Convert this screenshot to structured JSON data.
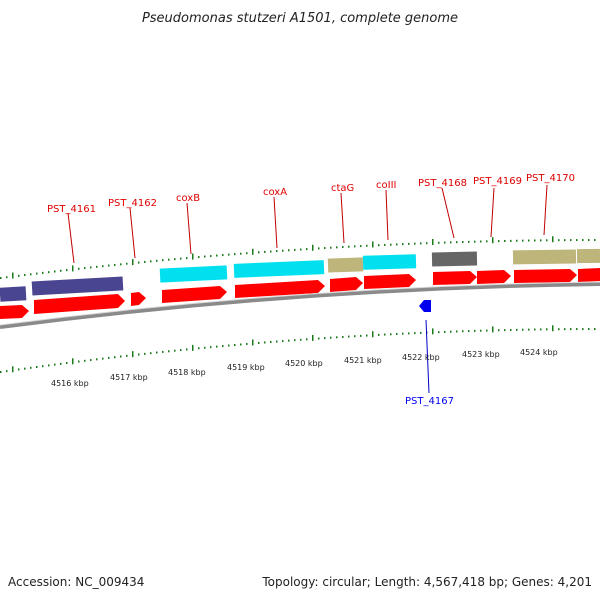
{
  "title": "Pseudomonas stutzeri A1501, complete genome",
  "footer": {
    "accession": "Accession: NC_009434",
    "topology": "Topology: circular; Length: 4,567,418 bp; Genes: 4,201"
  },
  "colors": {
    "cds": "#ff0000",
    "cds_dark": "#b00000",
    "cyan": "#00e0ee",
    "purple": "#4a4590",
    "olive": "#bdb57a",
    "gray": "#666666",
    "blue": "#0000ee",
    "tick": "#1a7a1a",
    "backbone": "#8a8a8a"
  },
  "scale": {
    "unit": "kbp",
    "labels": [
      "4516 kbp",
      "4517 kbp",
      "4518 kbp",
      "4519 kbp",
      "4520 kbp",
      "4521 kbp",
      "4522 kbp",
      "4523 kbp",
      "4524 kbp"
    ]
  },
  "genes": [
    {
      "name": "PST_4161",
      "type": "forward"
    },
    {
      "name": "PST_4162",
      "type": "forward"
    },
    {
      "name": "coxB",
      "type": "forward"
    },
    {
      "name": "coxA",
      "type": "forward"
    },
    {
      "name": "ctaG",
      "type": "forward"
    },
    {
      "name": "coIII",
      "type": "forward"
    },
    {
      "name": "PST_4168",
      "type": "forward"
    },
    {
      "name": "PST_4169",
      "type": "forward"
    },
    {
      "name": "PST_4170",
      "type": "forward"
    },
    {
      "name": "PST_4167",
      "type": "reverse"
    }
  ]
}
